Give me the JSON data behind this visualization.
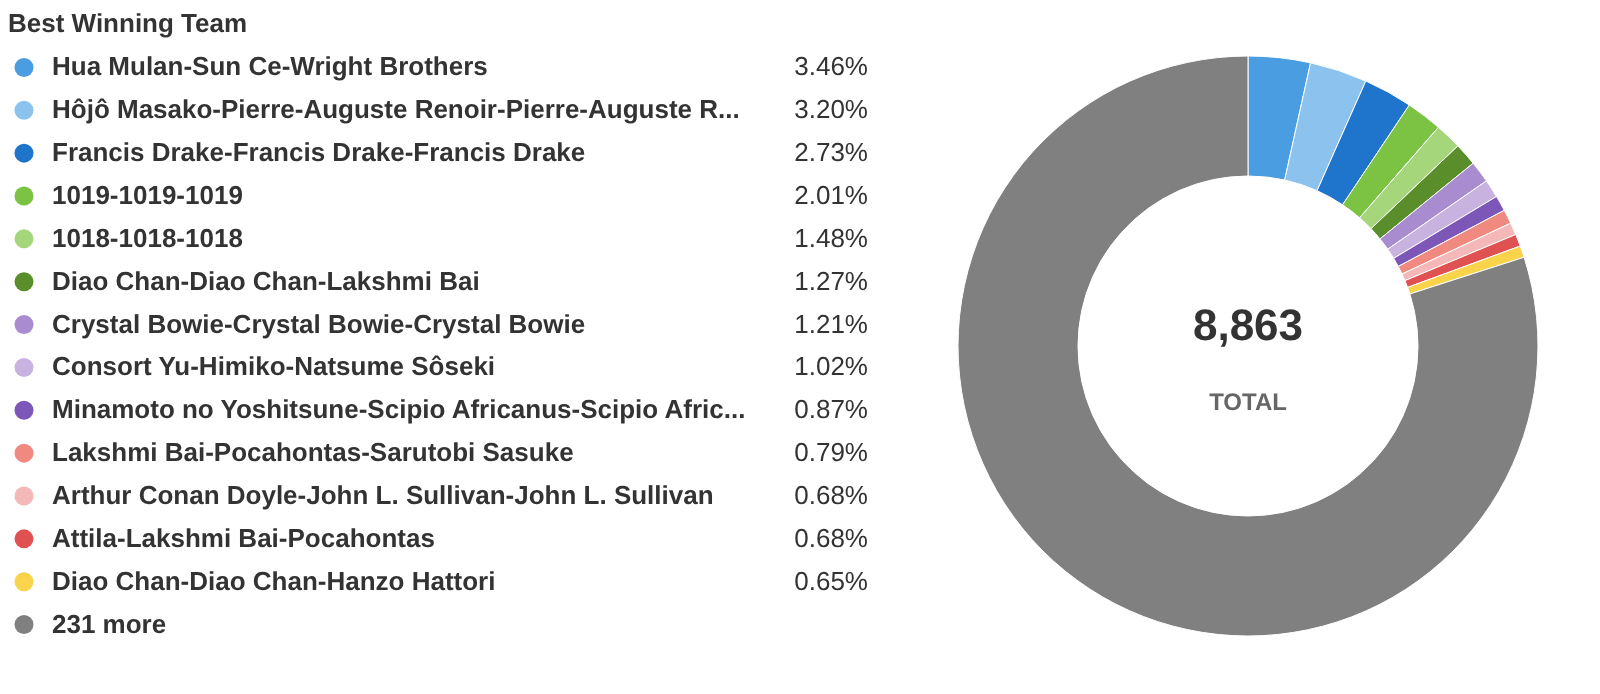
{
  "chart_data": {
    "type": "donut",
    "title": "Best Winning Team",
    "categories": [
      "Hua Mulan-Sun Ce-Wright Brothers",
      "Hôjô Masako-Pierre-Auguste Renoir-Pierre-Auguste R...",
      "Francis Drake-Francis Drake-Francis Drake",
      "1019-1019-1019",
      "1018-1018-1018",
      "Diao Chan-Diao Chan-Lakshmi Bai",
      "Crystal Bowie-Crystal Bowie-Crystal Bowie",
      "Consort Yu-Himiko-Natsume Sôseki",
      "Minamoto no Yoshitsune-Scipio Africanus-Scipio Afric...",
      "Lakshmi Bai-Pocahontas-Sarutobi Sasuke",
      "Arthur Conan Doyle-John L. Sullivan-John L. Sullivan",
      "Attila-Lakshmi Bai-Pocahontas",
      "Diao Chan-Diao Chan-Hanzo Hattori",
      "231 more"
    ],
    "values": [
      3.46,
      3.2,
      2.73,
      2.01,
      1.48,
      1.27,
      1.21,
      1.02,
      0.87,
      0.79,
      0.68,
      0.68,
      0.65,
      79.95
    ],
    "value_labels": [
      "3.46%",
      "3.20%",
      "2.73%",
      "2.01%",
      "1.48%",
      "1.27%",
      "1.21%",
      "1.02%",
      "0.87%",
      "0.79%",
      "0.68%",
      "0.68%",
      "0.65%",
      null
    ],
    "colors": [
      "#4a9de0",
      "#8cc3ee",
      "#1f74cc",
      "#7cc243",
      "#a5d67c",
      "#5a8e2a",
      "#a98bd0",
      "#c7b2e0",
      "#7d57b8",
      "#f08a80",
      "#f4b8b8",
      "#e05252",
      "#f9d34a",
      "#808080"
    ],
    "annotations": [
      "8,863",
      "TOTAL"
    ],
    "legend": "left"
  }
}
